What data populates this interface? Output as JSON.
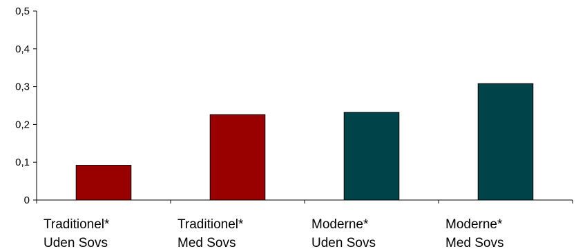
{
  "chart_data": {
    "type": "bar",
    "categories": [
      [
        "Traditionel*",
        "Uden Sovs"
      ],
      [
        "Traditionel*",
        "Med Sovs"
      ],
      [
        "Moderne*",
        "Uden Sovs"
      ],
      [
        "Moderne*",
        "Med Sovs"
      ]
    ],
    "values": [
      0.092,
      0.226,
      0.232,
      0.308
    ],
    "bar_colors": [
      "#990000",
      "#990000",
      "#004449",
      "#004449"
    ],
    "ylim": [
      0,
      0.5
    ],
    "yticks": [
      "0",
      "0,1",
      "0,2",
      "0,3",
      "0,4",
      "0,5"
    ],
    "grid": false,
    "legend": false
  }
}
